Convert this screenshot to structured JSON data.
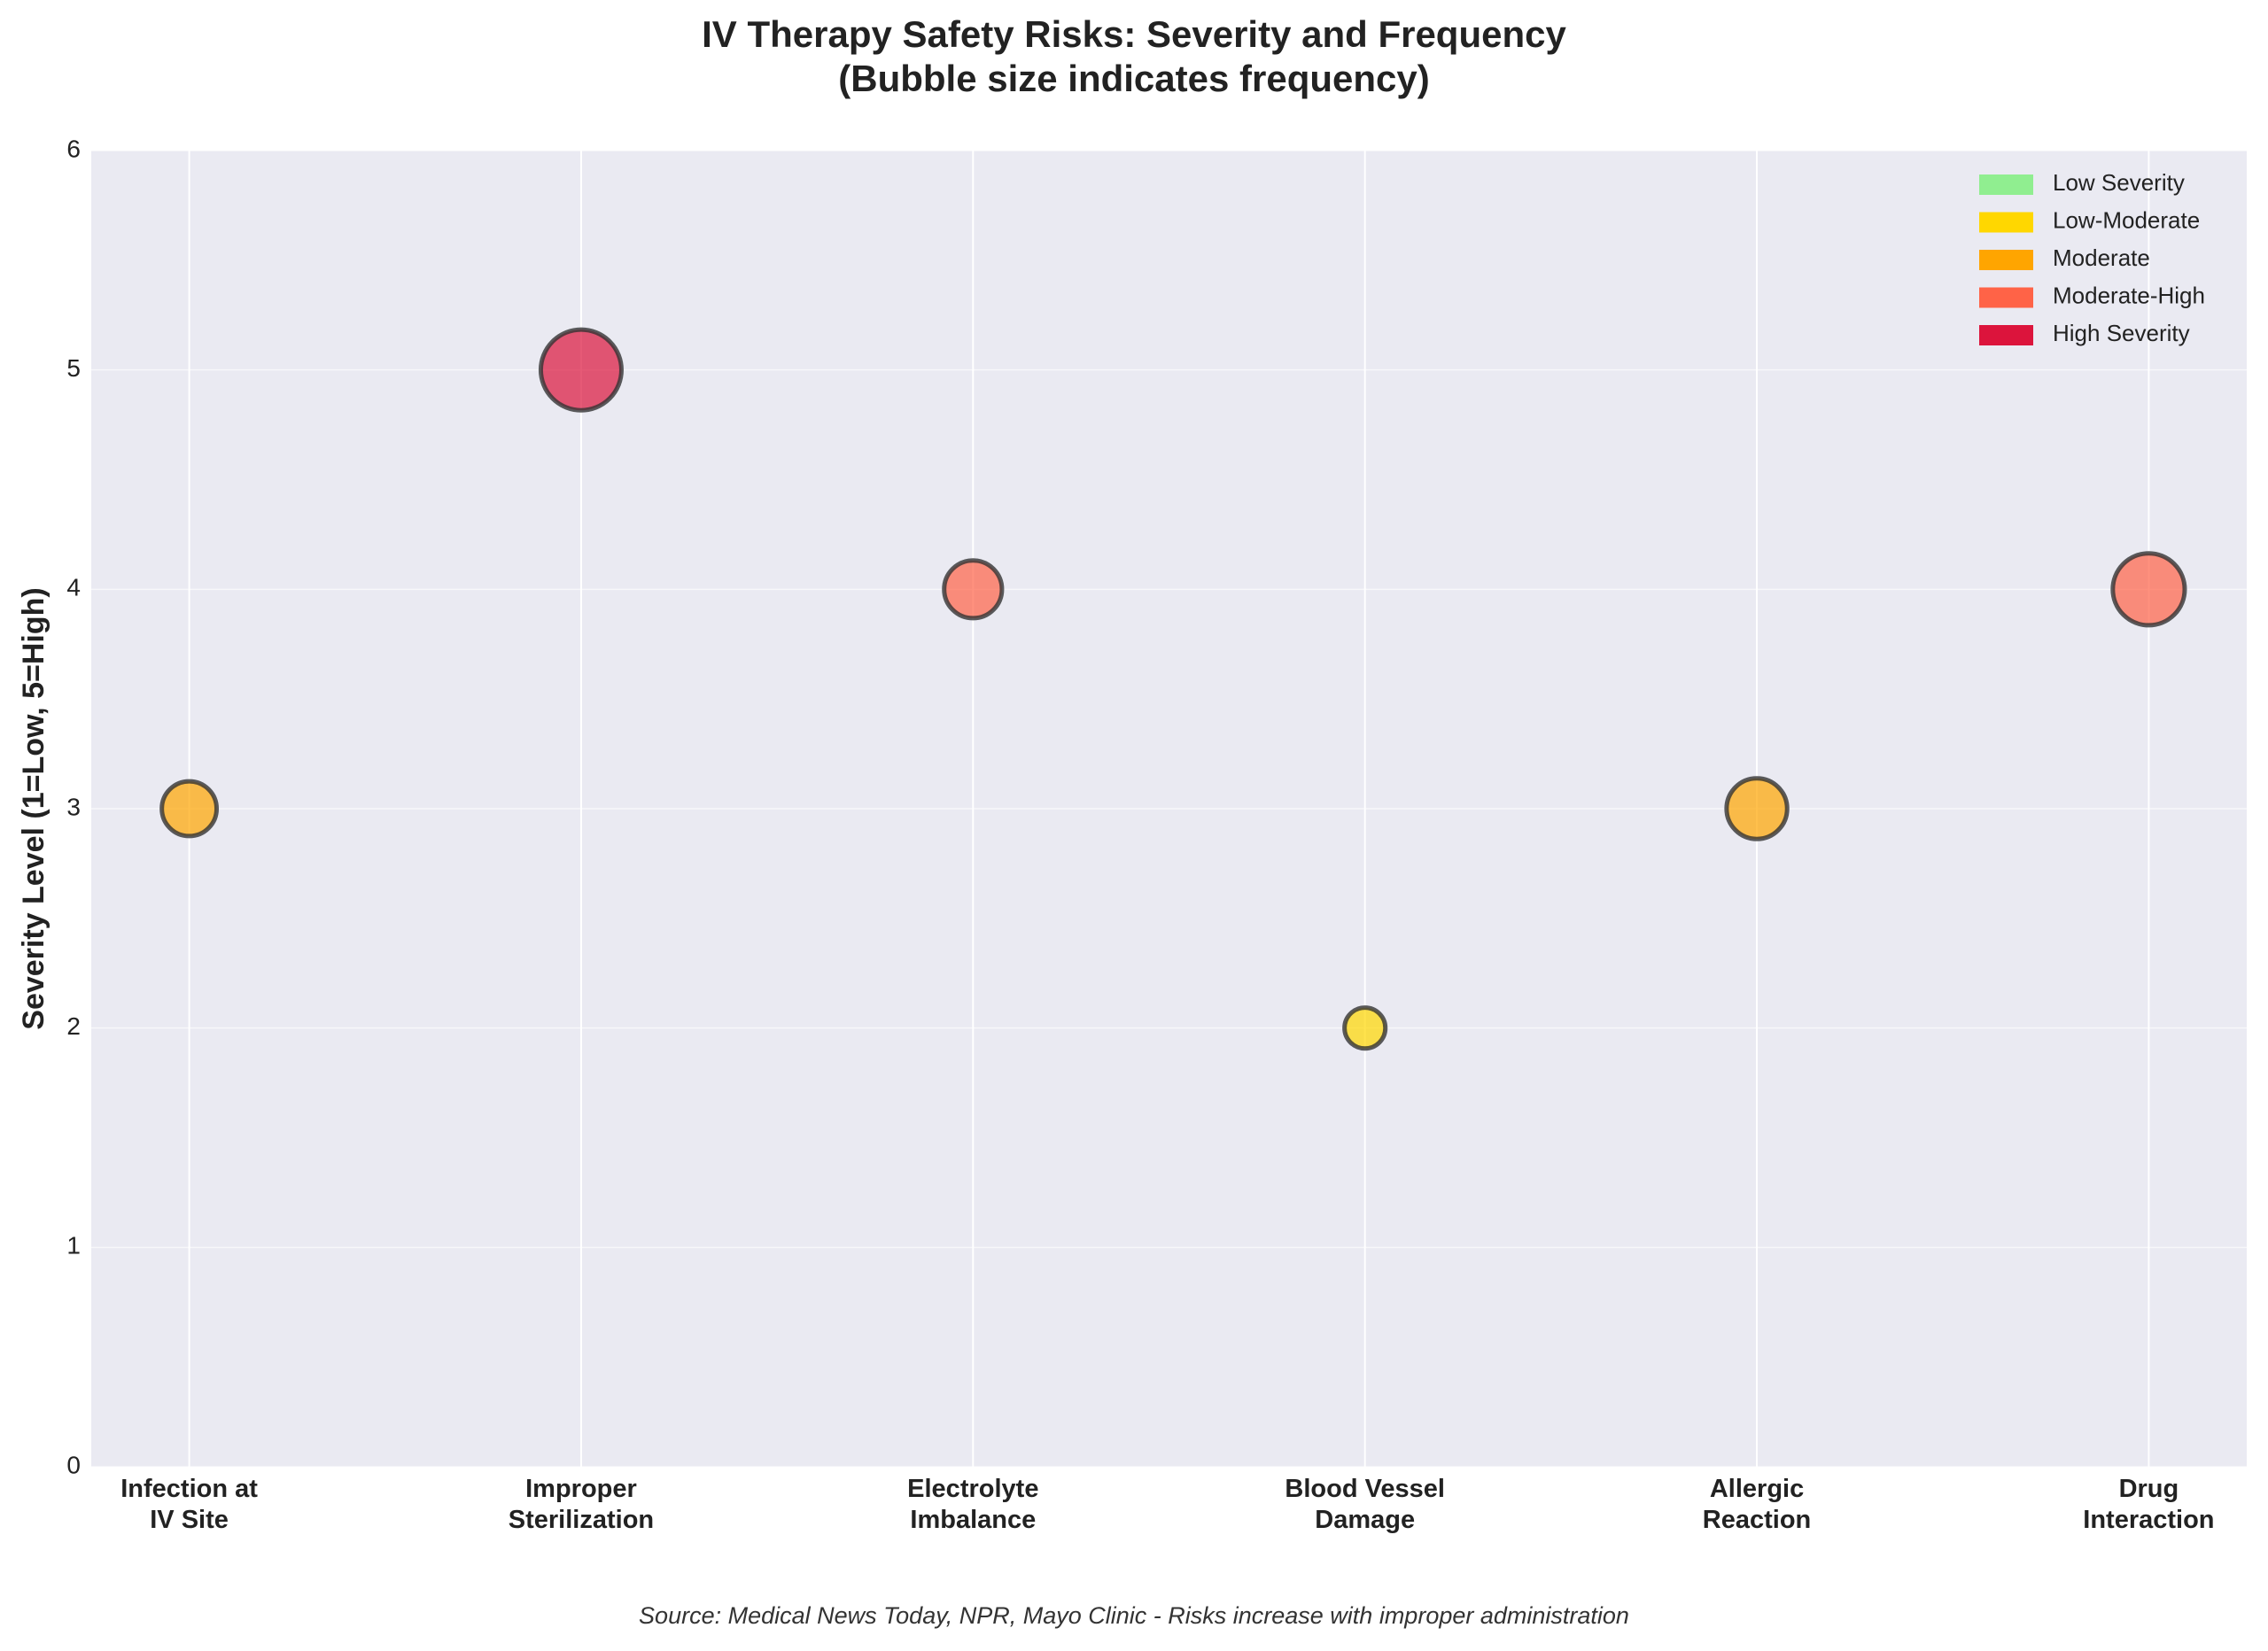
{
  "chart_data": {
    "type": "bubble",
    "title": "IV Therapy Safety Risks: Severity and Frequency\n(Bubble size indicates frequency)",
    "ylabel": "Severity Level (1=Low, 5=High)",
    "categories": [
      "Infection at\nIV Site",
      "Improper\nSterilization",
      "Electrolyte\nImbalance",
      "Blood Vessel\nDamage",
      "Allergic\nReaction",
      "Drug\nInteraction"
    ],
    "values": [
      3,
      5,
      4,
      2,
      3,
      4
    ],
    "sizes": [
      360,
      780,
      400,
      200,
      440,
      620
    ],
    "colors": [
      "#ffa500",
      "#dc143c",
      "#ff6347",
      "#ffd700",
      "#ffa500",
      "#ff6347"
    ],
    "ylim": [
      0,
      6
    ],
    "yticks": [
      0,
      1,
      2,
      3,
      4,
      5,
      6
    ],
    "grid": true,
    "legend_position": "upper-right",
    "legend": [
      {
        "label": "Low Severity",
        "color": "#90ee90"
      },
      {
        "label": "Low-Moderate",
        "color": "#ffd700"
      },
      {
        "label": "Moderate",
        "color": "#ffa500"
      },
      {
        "label": "Moderate-High",
        "color": "#ff6347"
      },
      {
        "label": "High Severity",
        "color": "#dc143c"
      }
    ],
    "source": "Source: Medical News Today, NPR, Mayo Clinic - Risks increase with improper administration"
  }
}
